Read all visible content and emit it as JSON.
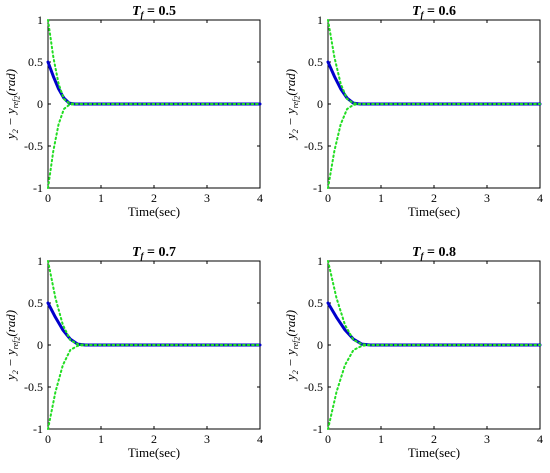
{
  "chart_data": [
    {
      "type": "line",
      "title": {
        "main": "T",
        "sub": "f",
        "rest": " = 0.5"
      },
      "xlabel": "Time(sec)",
      "ylabel": {
        "a": "y",
        "a_sub": "2",
        "minus": " − y",
        "b_sub": "ref",
        "b_subsub": "2",
        "rest": "(rad)"
      },
      "xlim": [
        0,
        4
      ],
      "ylim": [
        -1,
        1
      ],
      "xticks": [
        "0",
        "1",
        "2",
        "3",
        "4"
      ],
      "yticks": [
        "-1",
        "-0.5",
        "0",
        "0.5",
        "1"
      ],
      "tf": 0.5,
      "series": [
        {
          "style": "solid",
          "color": "#0000cc",
          "x": [
            0,
            0.1,
            0.2,
            0.3,
            0.4,
            0.5,
            1,
            2,
            3,
            4
          ],
          "y": [
            0.5,
            0.33,
            0.18,
            0.07,
            0.01,
            0,
            0,
            0,
            0,
            0
          ]
        },
        {
          "style": "dotted",
          "color": "#22dd22",
          "x": [
            0,
            0.1,
            0.2,
            0.3,
            0.4,
            0.5,
            1,
            2,
            3,
            4
          ],
          "y": [
            1,
            0.56,
            0.24,
            0.06,
            0.01,
            0,
            0,
            0,
            0,
            0
          ]
        },
        {
          "style": "dotted",
          "color": "#22dd22",
          "x": [
            0,
            0.1,
            0.2,
            0.3,
            0.4,
            0.5,
            1,
            2,
            3,
            4
          ],
          "y": [
            -1,
            -0.56,
            -0.24,
            -0.06,
            -0.01,
            0,
            0,
            0,
            0,
            0
          ]
        }
      ]
    },
    {
      "type": "line",
      "title": {
        "main": "T",
        "sub": "f",
        "rest": " = 0.6"
      },
      "xlabel": "Time(sec)",
      "ylabel": {
        "a": "y",
        "a_sub": "2",
        "minus": " − y",
        "b_sub": "ref",
        "b_subsub": "2",
        "rest": "(rad)"
      },
      "xlim": [
        0,
        4
      ],
      "ylim": [
        -1,
        1
      ],
      "xticks": [
        "0",
        "1",
        "2",
        "3",
        "4"
      ],
      "yticks": [
        "-1",
        "-0.5",
        "0",
        "0.5",
        "1"
      ],
      "tf": 0.6,
      "series": [
        {
          "style": "solid",
          "color": "#0000cc",
          "x": [
            0,
            0.12,
            0.24,
            0.36,
            0.48,
            0.6,
            1,
            2,
            3,
            4
          ],
          "y": [
            0.5,
            0.33,
            0.18,
            0.07,
            0.01,
            0,
            0,
            0,
            0,
            0
          ]
        },
        {
          "style": "dotted",
          "color": "#22dd22",
          "x": [
            0,
            0.12,
            0.24,
            0.36,
            0.48,
            0.6,
            1,
            2,
            3,
            4
          ],
          "y": [
            1,
            0.56,
            0.24,
            0.06,
            0.01,
            0,
            0,
            0,
            0,
            0
          ]
        },
        {
          "style": "dotted",
          "color": "#22dd22",
          "x": [
            0,
            0.12,
            0.24,
            0.36,
            0.48,
            0.6,
            1,
            2,
            3,
            4
          ],
          "y": [
            -1,
            -0.56,
            -0.24,
            -0.06,
            -0.01,
            0,
            0,
            0,
            0,
            0
          ]
        }
      ]
    },
    {
      "type": "line",
      "title": {
        "main": "T",
        "sub": "f",
        "rest": " = 0.7"
      },
      "xlabel": "Time(sec)",
      "ylabel": {
        "a": "y",
        "a_sub": "2",
        "minus": " − y",
        "b_sub": "ref",
        "b_subsub": "2",
        "rest": "(rad)"
      },
      "xlim": [
        0,
        4
      ],
      "ylim": [
        -1,
        1
      ],
      "xticks": [
        "0",
        "1",
        "2",
        "3",
        "4"
      ],
      "yticks": [
        "-1",
        "-0.5",
        "0",
        "0.5",
        "1"
      ],
      "tf": 0.7,
      "series": [
        {
          "style": "solid",
          "color": "#0000cc",
          "x": [
            0,
            0.14,
            0.28,
            0.42,
            0.56,
            0.7,
            1,
            2,
            3,
            4
          ],
          "y": [
            0.5,
            0.33,
            0.18,
            0.07,
            0.01,
            0,
            0,
            0,
            0,
            0
          ]
        },
        {
          "style": "dotted",
          "color": "#22dd22",
          "x": [
            0,
            0.14,
            0.28,
            0.42,
            0.56,
            0.7,
            1,
            2,
            3,
            4
          ],
          "y": [
            1,
            0.56,
            0.24,
            0.06,
            0.01,
            0,
            0,
            0,
            0,
            0
          ]
        },
        {
          "style": "dotted",
          "color": "#22dd22",
          "x": [
            0,
            0.14,
            0.28,
            0.42,
            0.56,
            0.7,
            1,
            2,
            3,
            4
          ],
          "y": [
            -1,
            -0.56,
            -0.24,
            -0.06,
            -0.01,
            0,
            0,
            0,
            0,
            0
          ]
        }
      ]
    },
    {
      "type": "line",
      "title": {
        "main": "T",
        "sub": "f",
        "rest": " = 0.8"
      },
      "xlabel": "Time(sec)",
      "ylabel": {
        "a": "y",
        "a_sub": "2",
        "minus": " − y",
        "b_sub": "ref",
        "b_subsub": "2",
        "rest": "(rad)"
      },
      "xlim": [
        0,
        4
      ],
      "ylim": [
        -1,
        1
      ],
      "xticks": [
        "0",
        "1",
        "2",
        "3",
        "4"
      ],
      "yticks": [
        "-1",
        "-0.5",
        "0",
        "0.5",
        "1"
      ],
      "tf": 0.8,
      "series": [
        {
          "style": "solid",
          "color": "#0000cc",
          "x": [
            0,
            0.16,
            0.32,
            0.48,
            0.64,
            0.8,
            1,
            2,
            3,
            4
          ],
          "y": [
            0.5,
            0.33,
            0.18,
            0.07,
            0.01,
            0,
            0,
            0,
            0,
            0
          ]
        },
        {
          "style": "dotted",
          "color": "#22dd22",
          "x": [
            0,
            0.16,
            0.32,
            0.48,
            0.64,
            0.8,
            1,
            2,
            3,
            4
          ],
          "y": [
            1,
            0.56,
            0.24,
            0.06,
            0.01,
            0,
            0,
            0,
            0,
            0
          ]
        },
        {
          "style": "dotted",
          "color": "#22dd22",
          "x": [
            0,
            0.16,
            0.32,
            0.48,
            0.64,
            0.8,
            1,
            2,
            3,
            4
          ],
          "y": [
            -1,
            -0.56,
            -0.24,
            -0.06,
            -0.01,
            0,
            0,
            0,
            0,
            0
          ]
        }
      ]
    }
  ]
}
